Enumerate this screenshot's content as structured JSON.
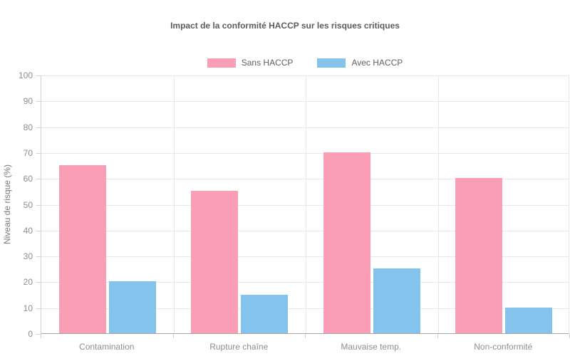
{
  "chart_data": {
    "type": "bar",
    "title": "Impact de la conformité HACCP sur les risques critiques",
    "categories": [
      "Contamination",
      "Rupture chaîne",
      "Mauvaise temp.",
      "Non-conformité"
    ],
    "series": [
      {
        "name": "Sans HACCP",
        "color": "#fa9eb6",
        "values": [
          65,
          55,
          70,
          60
        ]
      },
      {
        "name": "Avec HACCP",
        "color": "#84c3ec",
        "values": [
          20,
          15,
          25,
          10
        ]
      }
    ],
    "xlabel": "",
    "ylabel": "Niveau de risque (%)",
    "ylim": [
      0,
      100
    ],
    "yticks": [
      0,
      10,
      20,
      30,
      40,
      50,
      60,
      70,
      80,
      90,
      100
    ],
    "grid": true,
    "legend_position": "top-center",
    "value_unit": "%"
  },
  "colors": {
    "background": "#ffffff",
    "grid": "#e8e8e8",
    "axis": "#cfcfcf",
    "baseline": "#a6a6a6",
    "tick_label": "#8e8e8e",
    "title": "#5c5c5c",
    "legend_label": "#606060",
    "axis_label": "#7a7a7a"
  }
}
